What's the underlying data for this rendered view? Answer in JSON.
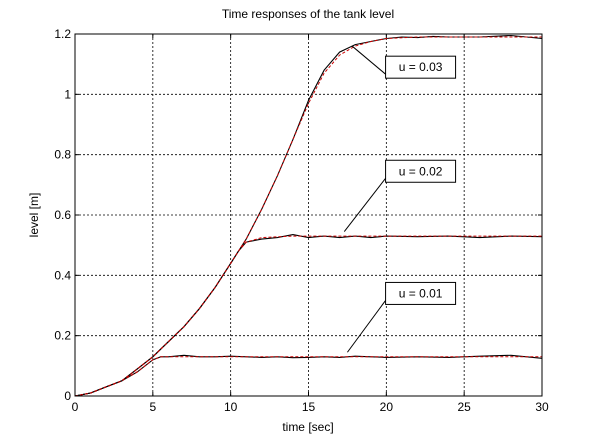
{
  "chart_data": {
    "type": "line",
    "title": "Time responses of the tank level",
    "xlabel": "time [sec]",
    "ylabel": "level [m]",
    "xlim": [
      0,
      30
    ],
    "ylim": [
      0,
      1.2
    ],
    "xticks": [
      0,
      5,
      10,
      15,
      20,
      25,
      30
    ],
    "yticks": [
      0,
      0.2,
      0.4,
      0.6,
      0.8,
      1,
      1.2
    ],
    "xtick_labels": [
      "0",
      "5",
      "10",
      "15",
      "20",
      "25",
      "30"
    ],
    "ytick_labels": [
      "0",
      "0.2",
      "0.4",
      "0.6",
      "0.8",
      "1",
      "1.2"
    ],
    "grid": true,
    "series": [
      {
        "color": "#000000",
        "x": [
          0,
          1,
          2,
          3,
          4,
          5,
          5.5,
          6,
          7,
          8,
          9,
          10,
          11,
          12,
          13,
          14,
          15,
          16,
          17,
          18,
          19,
          20,
          22,
          24,
          26,
          28,
          30
        ],
        "y": [
          0,
          0.01,
          0.03,
          0.05,
          0.08,
          0.12,
          0.13,
          0.13,
          0.135,
          0.13,
          0.13,
          0.132,
          0.13,
          0.128,
          0.13,
          0.127,
          0.128,
          0.13,
          0.128,
          0.132,
          0.13,
          0.128,
          0.13,
          0.128,
          0.132,
          0.135,
          0.125
        ]
      },
      {
        "color": "#cc0000",
        "dashed": true,
        "x": [
          0,
          1,
          2,
          3,
          4,
          5,
          5.5,
          6,
          8,
          10,
          12,
          14,
          16,
          18,
          20,
          22,
          24,
          26,
          28,
          30
        ],
        "y": [
          0,
          0.01,
          0.03,
          0.05,
          0.08,
          0.12,
          0.13,
          0.13,
          0.13,
          0.13,
          0.13,
          0.13,
          0.13,
          0.13,
          0.13,
          0.13,
          0.13,
          0.13,
          0.13,
          0.13
        ]
      },
      {
        "color": "#000000",
        "x": [
          0,
          1,
          2,
          3,
          4,
          5,
          6,
          7,
          8,
          9,
          10,
          10.5,
          11,
          12,
          13,
          14,
          15,
          16,
          17,
          18,
          19,
          20,
          22,
          24,
          26,
          28,
          30
        ],
        "y": [
          0,
          0.01,
          0.03,
          0.05,
          0.09,
          0.13,
          0.18,
          0.23,
          0.29,
          0.36,
          0.44,
          0.48,
          0.51,
          0.52,
          0.525,
          0.535,
          0.525,
          0.53,
          0.525,
          0.53,
          0.525,
          0.53,
          0.528,
          0.53,
          0.525,
          0.53,
          0.528
        ]
      },
      {
        "color": "#cc0000",
        "dashed": true,
        "x": [
          0,
          1,
          2,
          3,
          4,
          5,
          6,
          7,
          8,
          9,
          10,
          10.5,
          11,
          12,
          14,
          16,
          18,
          20,
          22,
          24,
          26,
          28,
          30
        ],
        "y": [
          0,
          0.01,
          0.03,
          0.05,
          0.09,
          0.13,
          0.18,
          0.23,
          0.29,
          0.36,
          0.44,
          0.48,
          0.51,
          0.525,
          0.53,
          0.53,
          0.53,
          0.53,
          0.53,
          0.53,
          0.53,
          0.53,
          0.53
        ]
      },
      {
        "color": "#000000",
        "x": [
          0,
          1,
          2,
          3,
          4,
          5,
          6,
          7,
          8,
          9,
          10,
          11,
          12,
          13,
          14,
          15,
          16,
          17,
          18,
          19,
          20,
          21,
          22,
          23,
          24,
          26,
          28,
          30
        ],
        "y": [
          0,
          0.01,
          0.03,
          0.05,
          0.09,
          0.13,
          0.18,
          0.23,
          0.29,
          0.36,
          0.44,
          0.52,
          0.62,
          0.73,
          0.85,
          0.98,
          1.08,
          1.14,
          1.165,
          1.175,
          1.185,
          1.19,
          1.188,
          1.192,
          1.19,
          1.19,
          1.195,
          1.185
        ]
      },
      {
        "color": "#cc0000",
        "dashed": true,
        "x": [
          0,
          1,
          2,
          3,
          4,
          5,
          6,
          7,
          8,
          9,
          10,
          11,
          12,
          13,
          14,
          15,
          16,
          17,
          18,
          19,
          20,
          22,
          24,
          26,
          28,
          30
        ],
        "y": [
          0,
          0.01,
          0.03,
          0.05,
          0.09,
          0.13,
          0.18,
          0.23,
          0.29,
          0.36,
          0.44,
          0.52,
          0.62,
          0.73,
          0.85,
          0.97,
          1.07,
          1.13,
          1.16,
          1.175,
          1.185,
          1.19,
          1.19,
          1.19,
          1.19,
          1.19
        ]
      }
    ],
    "annotations": [
      {
        "text": "u = 0.03",
        "target": [
          17.8,
          1.16
        ],
        "box_at": [
          22.2,
          1.09
        ]
      },
      {
        "text": "u = 0.02",
        "target": [
          17.3,
          0.545
        ],
        "box_at": [
          22.2,
          0.745
        ]
      },
      {
        "text": "u = 0.01",
        "target": [
          17.5,
          0.145
        ],
        "box_at": [
          22.2,
          0.34
        ]
      }
    ]
  }
}
